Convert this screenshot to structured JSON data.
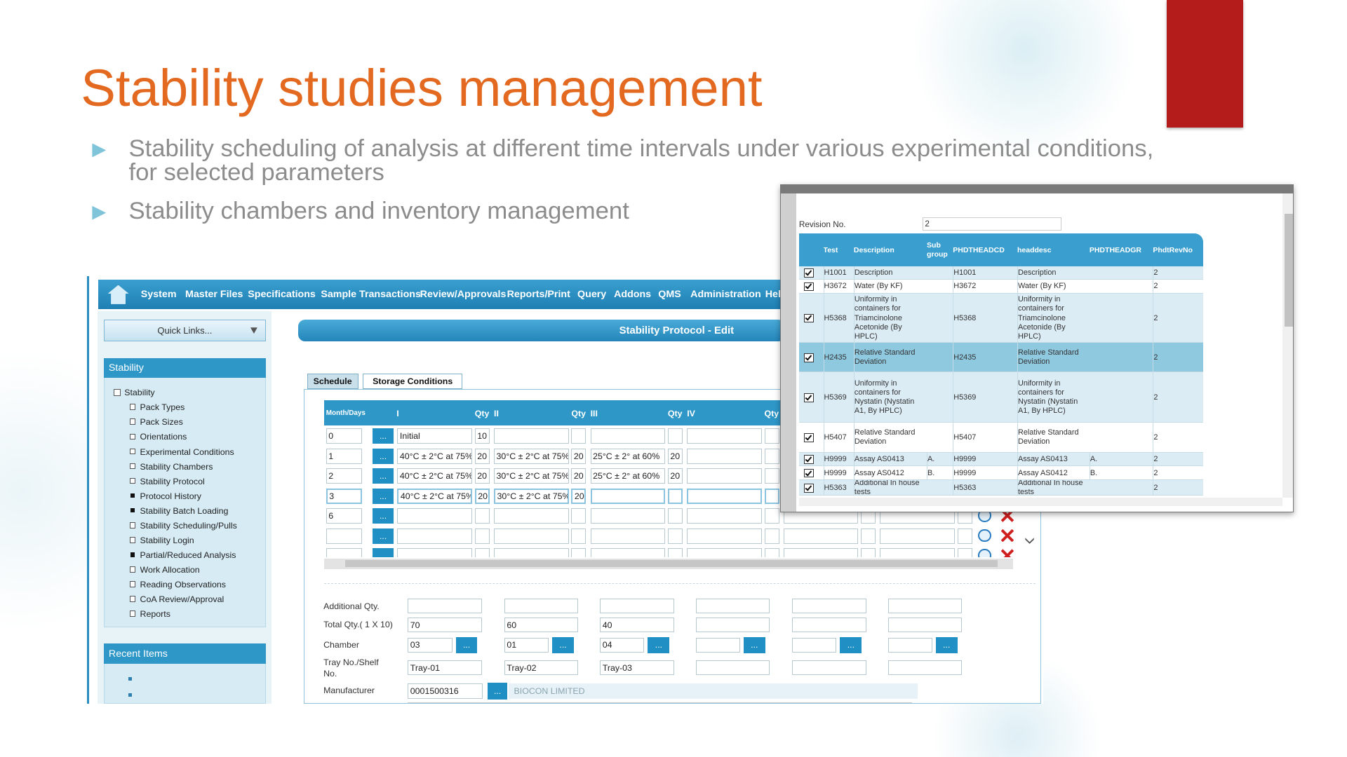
{
  "slide": {
    "title": "Stability studies management",
    "bullets": [
      "Stability scheduling of analysis at different time intervals under various experimental conditions, for selected parameters",
      "Stability chambers and inventory management"
    ]
  },
  "app": {
    "menu": [
      "System",
      "Master Files",
      "Specifications",
      "Sample Transactions",
      "Review/Approvals",
      "Reports/Print",
      "Query",
      "Addons",
      "QMS",
      "Administration",
      "Help"
    ],
    "quick_links": "Quick Links...",
    "sidebar_title": "Stability",
    "sidebar_root": "Stability",
    "sidebar_items": [
      {
        "label": "Pack Types",
        "expandable": true
      },
      {
        "label": "Pack Sizes",
        "expandable": true
      },
      {
        "label": "Orientations",
        "expandable": true
      },
      {
        "label": "Experimental Conditions",
        "expandable": true
      },
      {
        "label": "Stability Chambers",
        "expandable": true
      },
      {
        "label": "Stability Protocol",
        "expandable": true
      },
      {
        "label": "Protocol History",
        "expandable": false
      },
      {
        "label": "Stability Batch Loading",
        "expandable": false
      },
      {
        "label": "Stability Scheduling/Pulls",
        "expandable": true
      },
      {
        "label": "Stability Login",
        "expandable": true
      },
      {
        "label": "Partial/Reduced Analysis",
        "expandable": false
      },
      {
        "label": "Work Allocation",
        "expandable": true
      },
      {
        "label": "Reading Observations",
        "expandable": true
      },
      {
        "label": "CoA Review/Approval",
        "expandable": true
      },
      {
        "label": "Reports",
        "expandable": true
      }
    ],
    "recent_title": "Recent Items",
    "form_title": "Stability Protocol - Edit",
    "tabs": [
      "Schedule",
      "Storage Conditions"
    ],
    "button_label": "...",
    "grid_headers": [
      "Month/Days",
      "I",
      "Qty",
      "II",
      "Qty",
      "III",
      "Qty",
      "IV",
      "Qty"
    ],
    "grid_rows": [
      {
        "month": "0",
        "cells": [
          {
            "condition": "Initial",
            "qty": 10
          }
        ]
      },
      {
        "month": "1",
        "cells": [
          {
            "condition": "40°C ± 2°C at 75%",
            "qty": 20
          },
          {
            "condition": "30°C ± 2°C at 75%",
            "qty": 20
          },
          {
            "condition": "25°C ± 2° at 60%",
            "qty": 20
          }
        ]
      },
      {
        "month": "2",
        "cells": [
          {
            "condition": "40°C ± 2°C at 75%",
            "qty": 20
          },
          {
            "condition": "30°C ± 2°C at 75%",
            "qty": 20
          },
          {
            "condition": "25°C ± 2° at 60%",
            "qty": 20
          }
        ]
      },
      {
        "month": "3",
        "cells": [
          {
            "condition": "40°C ± 2°C at 75%",
            "qty": 20
          },
          {
            "condition": "30°C ± 2°C at 75%",
            "qty": 20
          }
        ]
      },
      {
        "month": "6",
        "cells": []
      },
      {
        "month": null,
        "cells": []
      }
    ],
    "labels": {
      "additional_qty": "Additional Qty.",
      "total_qty": "Total Qty.( 1 X 10)",
      "chamber": "Chamber",
      "tray": "Tray No./Shelf No.",
      "manufacturer": "Manufacturer"
    },
    "total_qty": [
      70,
      60,
      40
    ],
    "chamber": [
      "03",
      "01",
      "04"
    ],
    "tray": [
      "Tray-01",
      "Tray-02",
      "Tray-03"
    ],
    "manufacturer_code": "0001500316",
    "manufacturer_name": "BIOCON LIMITED"
  },
  "popup": {
    "revision_label": "Revision No.",
    "revision": "2",
    "headers": [
      "Test",
      "Description",
      "Sub group",
      "PHDTHEADCD",
      "headdesc",
      "PHDTHEADGR",
      "PhdtRevNo"
    ],
    "rows": [
      {
        "test": "H1001",
        "description": "Description",
        "head_cd": "H1001",
        "head_desc": "Description",
        "rev_no": 2
      },
      {
        "test": "H3672",
        "description": "Water (By KF)",
        "head_cd": "H3672",
        "head_desc": "Water (By KF)",
        "rev_no": 2
      },
      {
        "test": "H5368",
        "description": "Uniformity in containers for Triamcinolone Acetonide (By HPLC)",
        "head_cd": "H5368",
        "head_desc": "Uniformity in containers for Triamcinolone Acetonide (By HPLC)",
        "rev_no": 2
      },
      {
        "test": "H2435",
        "description": "Relative Standard Deviation",
        "head_cd": "H2435",
        "head_desc": "Relative Standard Deviation",
        "rev_no": 2
      },
      {
        "test": "H5369",
        "description": "Uniformity in containers for Nystatin (Nystatin A1, By HPLC)",
        "head_cd": "H5369",
        "head_desc": "Uniformity in containers for Nystatin (Nystatin A1, By HPLC)",
        "rev_no": 2
      },
      {
        "test": "H5407",
        "description": "Relative Standard Deviation",
        "head_cd": "H5407",
        "head_desc": "Relative Standard Deviation",
        "rev_no": 2
      },
      {
        "test": "H9999",
        "description": "Assay AS0413",
        "subgroup": "A.",
        "head_cd": "H9999",
        "head_desc": "Assay AS0413",
        "head_gr": "A.",
        "rev_no": 2
      },
      {
        "test": "H9999",
        "description": "Assay AS0412",
        "subgroup": "B.",
        "head_cd": "H9999",
        "head_desc": "Assay AS0412",
        "head_gr": "B.",
        "rev_no": 2
      },
      {
        "test": "H5363",
        "description": "Additional In house tests",
        "head_cd": "H5363",
        "head_desc": "Additional In house tests",
        "rev_no": 2
      }
    ]
  }
}
